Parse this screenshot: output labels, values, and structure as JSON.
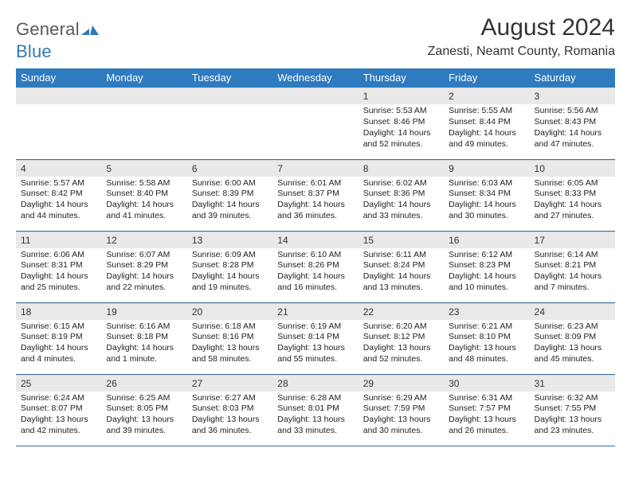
{
  "brand": {
    "word1": "General",
    "word2": "Blue",
    "word1_color": "#5a5a5a",
    "word2_color": "#2e79b8",
    "mark_color": "#2e79b8"
  },
  "header": {
    "title": "August 2024",
    "location": "Zanesti, Neamt County, Romania"
  },
  "style": {
    "header_row_bg": "#2f7bbf",
    "header_row_fg": "#ffffff",
    "daynum_bg": "#e9e9e9",
    "border_color": "#3a6b96",
    "body_font_size": 10.5,
    "header_font_size": 13,
    "title_font_size": 30
  },
  "weekdays": [
    "Sunday",
    "Monday",
    "Tuesday",
    "Wednesday",
    "Thursday",
    "Friday",
    "Saturday"
  ],
  "weeks": [
    [
      null,
      null,
      null,
      null,
      {
        "n": "1",
        "sunrise": "5:53 AM",
        "sunset": "8:46 PM",
        "daylight": "14 hours and 52 minutes."
      },
      {
        "n": "2",
        "sunrise": "5:55 AM",
        "sunset": "8:44 PM",
        "daylight": "14 hours and 49 minutes."
      },
      {
        "n": "3",
        "sunrise": "5:56 AM",
        "sunset": "8:43 PM",
        "daylight": "14 hours and 47 minutes."
      }
    ],
    [
      {
        "n": "4",
        "sunrise": "5:57 AM",
        "sunset": "8:42 PM",
        "daylight": "14 hours and 44 minutes."
      },
      {
        "n": "5",
        "sunrise": "5:58 AM",
        "sunset": "8:40 PM",
        "daylight": "14 hours and 41 minutes."
      },
      {
        "n": "6",
        "sunrise": "6:00 AM",
        "sunset": "8:39 PM",
        "daylight": "14 hours and 39 minutes."
      },
      {
        "n": "7",
        "sunrise": "6:01 AM",
        "sunset": "8:37 PM",
        "daylight": "14 hours and 36 minutes."
      },
      {
        "n": "8",
        "sunrise": "6:02 AM",
        "sunset": "8:36 PM",
        "daylight": "14 hours and 33 minutes."
      },
      {
        "n": "9",
        "sunrise": "6:03 AM",
        "sunset": "8:34 PM",
        "daylight": "14 hours and 30 minutes."
      },
      {
        "n": "10",
        "sunrise": "6:05 AM",
        "sunset": "8:33 PM",
        "daylight": "14 hours and 27 minutes."
      }
    ],
    [
      {
        "n": "11",
        "sunrise": "6:06 AM",
        "sunset": "8:31 PM",
        "daylight": "14 hours and 25 minutes."
      },
      {
        "n": "12",
        "sunrise": "6:07 AM",
        "sunset": "8:29 PM",
        "daylight": "14 hours and 22 minutes."
      },
      {
        "n": "13",
        "sunrise": "6:09 AM",
        "sunset": "8:28 PM",
        "daylight": "14 hours and 19 minutes."
      },
      {
        "n": "14",
        "sunrise": "6:10 AM",
        "sunset": "8:26 PM",
        "daylight": "14 hours and 16 minutes."
      },
      {
        "n": "15",
        "sunrise": "6:11 AM",
        "sunset": "8:24 PM",
        "daylight": "14 hours and 13 minutes."
      },
      {
        "n": "16",
        "sunrise": "6:12 AM",
        "sunset": "8:23 PM",
        "daylight": "14 hours and 10 minutes."
      },
      {
        "n": "17",
        "sunrise": "6:14 AM",
        "sunset": "8:21 PM",
        "daylight": "14 hours and 7 minutes."
      }
    ],
    [
      {
        "n": "18",
        "sunrise": "6:15 AM",
        "sunset": "8:19 PM",
        "daylight": "14 hours and 4 minutes."
      },
      {
        "n": "19",
        "sunrise": "6:16 AM",
        "sunset": "8:18 PM",
        "daylight": "14 hours and 1 minute."
      },
      {
        "n": "20",
        "sunrise": "6:18 AM",
        "sunset": "8:16 PM",
        "daylight": "13 hours and 58 minutes."
      },
      {
        "n": "21",
        "sunrise": "6:19 AM",
        "sunset": "8:14 PM",
        "daylight": "13 hours and 55 minutes."
      },
      {
        "n": "22",
        "sunrise": "6:20 AM",
        "sunset": "8:12 PM",
        "daylight": "13 hours and 52 minutes."
      },
      {
        "n": "23",
        "sunrise": "6:21 AM",
        "sunset": "8:10 PM",
        "daylight": "13 hours and 48 minutes."
      },
      {
        "n": "24",
        "sunrise": "6:23 AM",
        "sunset": "8:09 PM",
        "daylight": "13 hours and 45 minutes."
      }
    ],
    [
      {
        "n": "25",
        "sunrise": "6:24 AM",
        "sunset": "8:07 PM",
        "daylight": "13 hours and 42 minutes."
      },
      {
        "n": "26",
        "sunrise": "6:25 AM",
        "sunset": "8:05 PM",
        "daylight": "13 hours and 39 minutes."
      },
      {
        "n": "27",
        "sunrise": "6:27 AM",
        "sunset": "8:03 PM",
        "daylight": "13 hours and 36 minutes."
      },
      {
        "n": "28",
        "sunrise": "6:28 AM",
        "sunset": "8:01 PM",
        "daylight": "13 hours and 33 minutes."
      },
      {
        "n": "29",
        "sunrise": "6:29 AM",
        "sunset": "7:59 PM",
        "daylight": "13 hours and 30 minutes."
      },
      {
        "n": "30",
        "sunrise": "6:31 AM",
        "sunset": "7:57 PM",
        "daylight": "13 hours and 26 minutes."
      },
      {
        "n": "31",
        "sunrise": "6:32 AM",
        "sunset": "7:55 PM",
        "daylight": "13 hours and 23 minutes."
      }
    ]
  ],
  "labels": {
    "sunrise": "Sunrise:",
    "sunset": "Sunset:",
    "daylight": "Daylight:"
  }
}
